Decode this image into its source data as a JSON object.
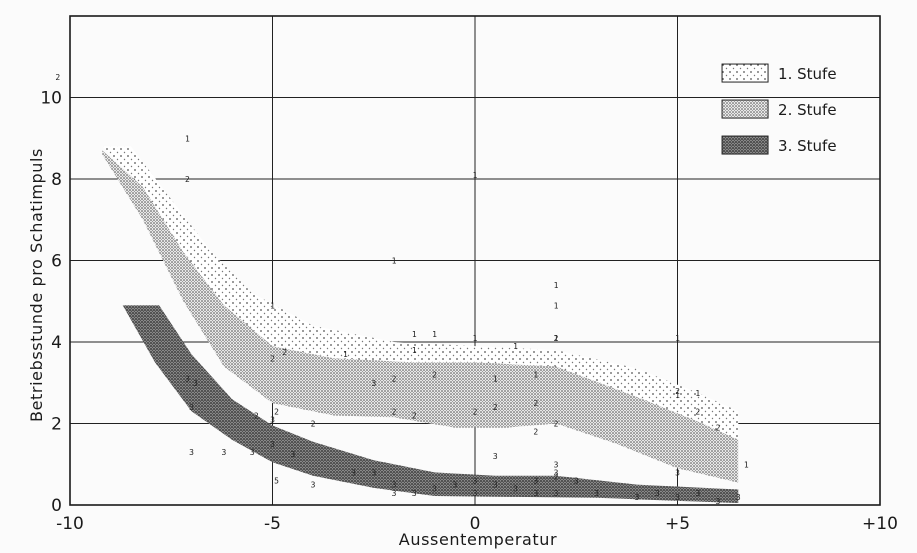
{
  "chart_data": {
    "type": "scatter",
    "title": "",
    "xlabel": "Aussentemperatur",
    "ylabel": "Betriebsstunde pro Schatimpuls",
    "xlim": [
      -10,
      10
    ],
    "ylim": [
      0,
      12
    ],
    "x_ticks": [
      {
        "value": -10,
        "label": "-10"
      },
      {
        "value": -5,
        "label": "-5"
      },
      {
        "value": 0,
        "label": "0"
      },
      {
        "value": 5,
        "label": "+5"
      },
      {
        "value": 10,
        "label": "+10"
      }
    ],
    "y_ticks": [
      {
        "value": 0,
        "label": "0"
      },
      {
        "value": 2,
        "label": "2"
      },
      {
        "value": 4,
        "label": "4"
      },
      {
        "value": 6,
        "label": "6"
      },
      {
        "value": 8,
        "label": "8"
      },
      {
        "value": 10,
        "label": "10"
      }
    ],
    "grid": true,
    "legend_position": "top-right",
    "bands": [
      {
        "name": "1. Stufe",
        "pattern": "sparse-dots",
        "color": "#555555",
        "upper": [
          [
            -9.2,
            8.8
          ],
          [
            -8.5,
            8.8
          ],
          [
            -7.5,
            7.5
          ],
          [
            -6.5,
            6.2
          ],
          [
            -5.5,
            5.2
          ],
          [
            -4,
            4.4
          ],
          [
            -2,
            4.0
          ],
          [
            0,
            3.9
          ],
          [
            2,
            3.8
          ],
          [
            4,
            3.35
          ],
          [
            5.5,
            2.75
          ],
          [
            6.5,
            2.3
          ]
        ],
        "lower": [
          [
            -9.2,
            8.8
          ],
          [
            -8.2,
            7.8
          ],
          [
            -7.2,
            6.2
          ],
          [
            -6.2,
            4.9
          ],
          [
            -5,
            3.9
          ],
          [
            -3.5,
            3.6
          ],
          [
            -1.5,
            3.5
          ],
          [
            0,
            3.5
          ],
          [
            2,
            3.4
          ],
          [
            4,
            2.65
          ],
          [
            5.5,
            2.05
          ],
          [
            6.5,
            1.6
          ]
        ]
      },
      {
        "name": "2. Stufe",
        "pattern": "dense-dots",
        "color": "#444444",
        "upper": [
          [
            -9.2,
            8.7
          ],
          [
            -8.2,
            7.8
          ],
          [
            -7.2,
            6.2
          ],
          [
            -6.2,
            4.9
          ],
          [
            -5,
            3.9
          ],
          [
            -3.5,
            3.6
          ],
          [
            -1.5,
            3.5
          ],
          [
            0,
            3.5
          ],
          [
            2,
            3.4
          ],
          [
            4,
            2.65
          ],
          [
            5.5,
            2.05
          ],
          [
            6.5,
            1.6
          ]
        ],
        "lower": [
          [
            -9.2,
            8.6
          ],
          [
            -8.2,
            7.0
          ],
          [
            -7.2,
            5.0
          ],
          [
            -6.2,
            3.4
          ],
          [
            -5,
            2.5
          ],
          [
            -3.5,
            2.2
          ],
          [
            -2,
            2.15
          ],
          [
            -0.5,
            1.9
          ],
          [
            0.8,
            1.9
          ],
          [
            2,
            2.0
          ],
          [
            3.5,
            1.5
          ],
          [
            5,
            0.9
          ],
          [
            6.5,
            0.55
          ]
        ]
      },
      {
        "name": "3. Stufe",
        "pattern": "dark-stipple",
        "color": "#333333",
        "upper": [
          [
            -8.7,
            4.9
          ],
          [
            -7.8,
            4.9
          ],
          [
            -7,
            3.7
          ],
          [
            -6,
            2.6
          ],
          [
            -5,
            1.95
          ],
          [
            -4,
            1.55
          ],
          [
            -2.5,
            1.1
          ],
          [
            -1,
            0.8
          ],
          [
            0.5,
            0.72
          ],
          [
            2,
            0.72
          ],
          [
            4,
            0.5
          ],
          [
            6.5,
            0.38
          ]
        ],
        "lower": [
          [
            -8.7,
            4.9
          ],
          [
            -7.9,
            3.5
          ],
          [
            -7,
            2.3
          ],
          [
            -6,
            1.6
          ],
          [
            -5,
            1.05
          ],
          [
            -4,
            0.72
          ],
          [
            -2.5,
            0.42
          ],
          [
            -1,
            0.22
          ],
          [
            1,
            0.2
          ],
          [
            3,
            0.18
          ],
          [
            5,
            0.1
          ],
          [
            6.5,
            0.05
          ]
        ]
      }
    ],
    "series": [
      {
        "name": "1. Stufe",
        "label": "1",
        "points": [
          [
            -7.1,
            9.0
          ],
          [
            -2,
            6.0
          ],
          [
            -1.5,
            4.2
          ],
          [
            -1.0,
            4.2
          ],
          [
            0,
            8.1
          ],
          [
            0,
            4.1
          ],
          [
            0.5,
            3.1
          ],
          [
            1.0,
            3.9
          ],
          [
            1.5,
            3.2
          ],
          [
            2.0,
            5.4
          ],
          [
            2.0,
            4.9
          ],
          [
            2.0,
            4.1
          ],
          [
            5.0,
            4.1
          ],
          [
            5.0,
            2.7
          ],
          [
            5.5,
            2.75
          ],
          [
            6.7,
            1.0
          ],
          [
            -1.5,
            3.8
          ],
          [
            -3.2,
            3.7
          ],
          [
            -5.0,
            4.9
          ]
        ]
      },
      {
        "name": "2. Stufe",
        "label": "2",
        "points": [
          [
            -10.3,
            10.5
          ],
          [
            -7.1,
            8.0
          ],
          [
            -5.4,
            2.2
          ],
          [
            -4.9,
            2.3
          ],
          [
            -4.0,
            2.0
          ],
          [
            -2.0,
            3.1
          ],
          [
            -2.0,
            2.3
          ],
          [
            -1.5,
            2.2
          ],
          [
            -1.0,
            3.2
          ],
          [
            0.0,
            2.3
          ],
          [
            0.5,
            2.4
          ],
          [
            1.5,
            1.8
          ],
          [
            1.5,
            2.5
          ],
          [
            2.0,
            4.1
          ],
          [
            2.0,
            2.0
          ],
          [
            2.0,
            0.7
          ],
          [
            5.0,
            2.8
          ],
          [
            5.5,
            2.3
          ],
          [
            6.0,
            1.9
          ],
          [
            -5.0,
            3.6
          ],
          [
            -4.7,
            3.75
          ]
        ]
      },
      {
        "name": "3. Stufe",
        "label": "3",
        "points": [
          [
            -7.1,
            3.1
          ],
          [
            -6.9,
            3.0
          ],
          [
            -7.0,
            2.4
          ],
          [
            -7.0,
            1.3
          ],
          [
            -6.2,
            1.3
          ],
          [
            -5.5,
            1.3
          ],
          [
            -5.0,
            1.5
          ],
          [
            -5.0,
            2.1
          ],
          [
            -4.5,
            1.25
          ],
          [
            -4.0,
            0.5
          ],
          [
            -3.0,
            0.8
          ],
          [
            -2.5,
            0.8
          ],
          [
            -2.0,
            0.5
          ],
          [
            -2.0,
            0.3
          ],
          [
            -1.5,
            0.3
          ],
          [
            -1.0,
            0.4
          ],
          [
            -0.5,
            0.5
          ],
          [
            0.0,
            0.6
          ],
          [
            0.0,
            0.3
          ],
          [
            0.5,
            1.2
          ],
          [
            0.5,
            0.5
          ],
          [
            1.0,
            0.4
          ],
          [
            1.5,
            0.6
          ],
          [
            1.5,
            0.3
          ],
          [
            2.0,
            1.0
          ],
          [
            2.0,
            0.8
          ],
          [
            2.0,
            0.3
          ],
          [
            2.5,
            0.6
          ],
          [
            3.0,
            0.3
          ],
          [
            4.0,
            0.2
          ],
          [
            4.5,
            0.3
          ],
          [
            5.0,
            0.8
          ],
          [
            5.0,
            0.2
          ],
          [
            5.5,
            0.3
          ],
          [
            6.0,
            0.1
          ],
          [
            6.5,
            0.2
          ],
          [
            -2.5,
            3.0
          ]
        ]
      },
      {
        "name": "",
        "label": "5",
        "points": [
          [
            -4.9,
            0.6
          ]
        ]
      }
    ]
  }
}
